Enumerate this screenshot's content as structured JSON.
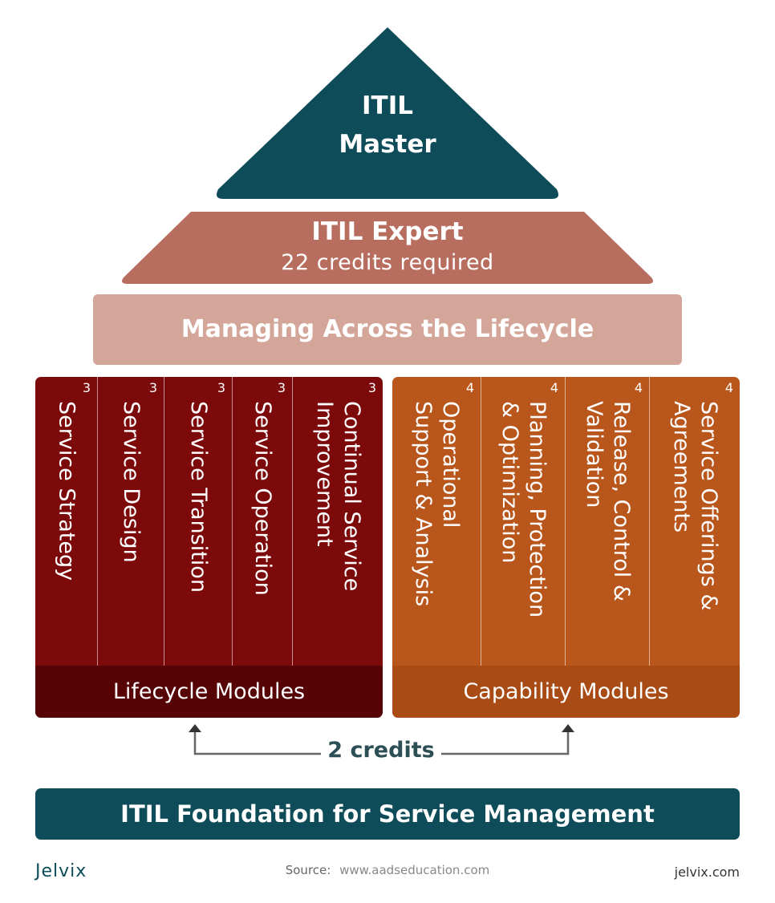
{
  "master": {
    "line1": "ITIL",
    "line2": "Master"
  },
  "expert": {
    "title": "ITIL Expert",
    "subtitle": "22 credits required"
  },
  "managing": {
    "label": "Managing Across the Lifecycle"
  },
  "lifecycle": {
    "footer": "Lifecycle Modules",
    "modules": [
      {
        "name": "Service Strategy",
        "credits": "3"
      },
      {
        "name": "Service Design",
        "credits": "3"
      },
      {
        "name": "Service Transition",
        "credits": "3"
      },
      {
        "name": "Service Operation",
        "credits": "3"
      },
      {
        "name": "Continual Service\nImprovement",
        "credits": "3"
      }
    ]
  },
  "capability": {
    "footer": "Capability Modules",
    "modules": [
      {
        "name": "Operational\nSupport & Analysis",
        "credits": "4"
      },
      {
        "name": "Planning, Protection\n& Optimization",
        "credits": "4"
      },
      {
        "name": "Release, Control &\nValidation",
        "credits": "4"
      },
      {
        "name": "Service Offerings &\nAgreements",
        "credits": "4"
      }
    ]
  },
  "connector": {
    "label": "2 credits"
  },
  "foundation": {
    "label": "ITIL Foundation for Service Management"
  },
  "footer": {
    "brand_left": "Jelvix",
    "source_label": "Source:",
    "source_url": "www.aadseducation.com",
    "brand_right": "jelvix.com"
  },
  "colors": {
    "teal": "#0f4c5a",
    "expert": "#b86e5f",
    "managing": "#d4a699",
    "lifecycle": "#7c0a0b",
    "lifecycle_dark": "#560406",
    "capability": "#b9561b",
    "capability_dark": "#a94b14"
  }
}
